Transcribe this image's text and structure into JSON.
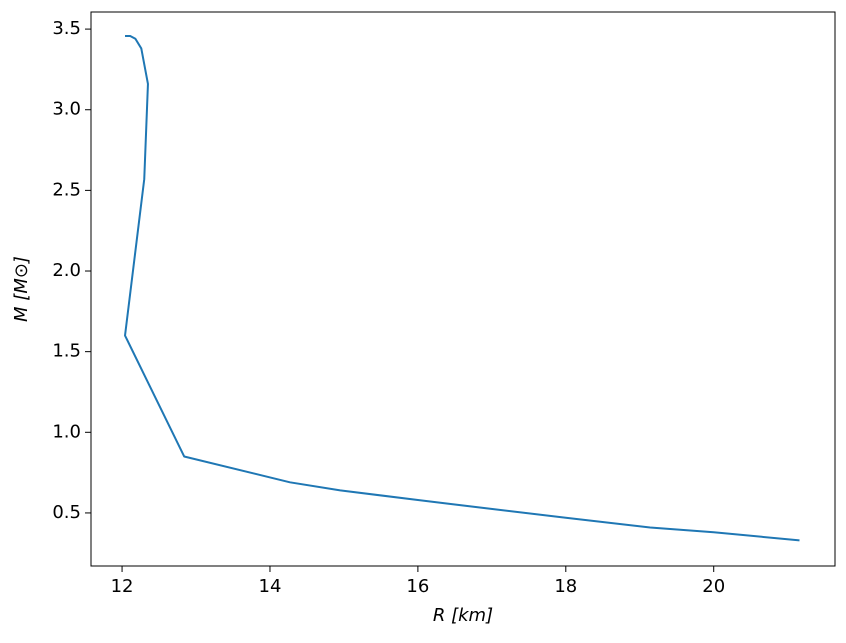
{
  "chart_data": {
    "type": "line",
    "xlabel": "R [km]",
    "ylabel": "M [M⊙]",
    "series": [
      {
        "color": "#1f77b4",
        "x": [
          12.04,
          12.11,
          12.18,
          12.26,
          12.35,
          12.3,
          12.04,
          12.84,
          14.27,
          14.95,
          16.0,
          16.43,
          18.0,
          19.14,
          20.0,
          21.16
        ],
        "values": [
          3.457,
          3.457,
          3.44,
          3.38,
          3.16,
          2.57,
          1.6,
          0.85,
          0.69,
          0.64,
          0.58,
          0.556,
          0.47,
          0.41,
          0.38,
          0.33
        ]
      }
    ],
    "xlim": [
      11.58,
      21.64
    ],
    "ylim": [
      0.171,
      3.606
    ],
    "xticks": [
      12,
      14,
      16,
      18,
      20
    ],
    "yticks": [
      0.5,
      {
        "value": 1,
        "label": "1.0"
      },
      1.5,
      {
        "value": 2,
        "label": "2.0"
      },
      2.5,
      {
        "value": 3,
        "label": "3.0"
      },
      3.5
    ],
    "grid": false
  }
}
